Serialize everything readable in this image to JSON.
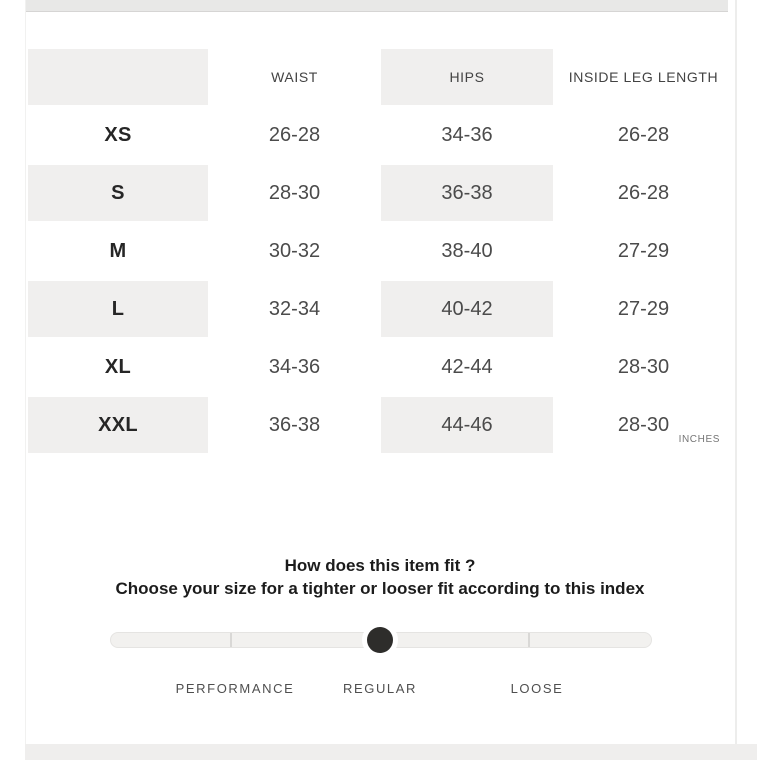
{
  "size_table": {
    "headers": {
      "size": "",
      "waist": "WAIST",
      "hips": "HIPS",
      "inside_leg": "INSIDE LEG LENGTH"
    },
    "rows": [
      {
        "size": "XS",
        "waist": "26-28",
        "hips": "34-36",
        "inside_leg": "26-28"
      },
      {
        "size": "S",
        "waist": "28-30",
        "hips": "36-38",
        "inside_leg": "26-28"
      },
      {
        "size": "M",
        "waist": "30-32",
        "hips": "38-40",
        "inside_leg": "27-29"
      },
      {
        "size": "L",
        "waist": "32-34",
        "hips": "40-42",
        "inside_leg": "27-29"
      },
      {
        "size": "XL",
        "waist": "34-36",
        "hips": "42-44",
        "inside_leg": "28-30"
      },
      {
        "size": "XXL",
        "waist": "36-38",
        "hips": "44-46",
        "inside_leg": "28-30"
      }
    ],
    "unit_label": "INCHES"
  },
  "fit_index": {
    "title": "How does this item fit ?",
    "subtitle": "Choose your size for a tighter or looser fit according to this index",
    "options": [
      {
        "label": "PERFORMANCE"
      },
      {
        "label": "REGULAR"
      },
      {
        "label": "LOOSE"
      }
    ],
    "selected": "REGULAR"
  },
  "colors": {
    "row_shade": "#f0efee",
    "knob": "#2e2d2b",
    "track": "#f2f1ef",
    "page_edge_gray": "#e8e8e7"
  }
}
